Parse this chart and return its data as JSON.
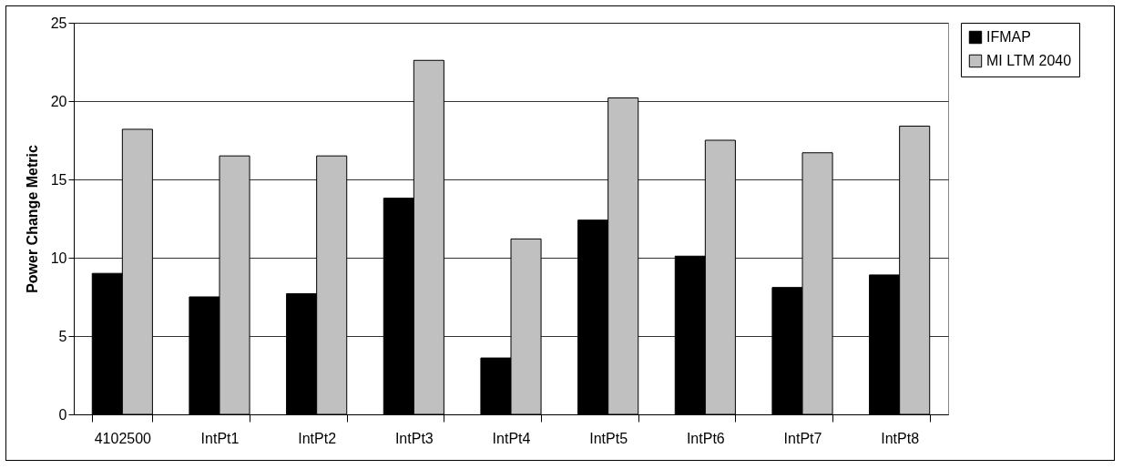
{
  "chart_data": {
    "type": "bar",
    "ylabel": "Power Change Metric",
    "categories": [
      "4102500",
      "IntPt1",
      "IntPt2",
      "IntPt3",
      "IntPt4",
      "IntPt5",
      "IntPt6",
      "IntPt7",
      "IntPt8"
    ],
    "series": [
      {
        "name": "IFMAP",
        "color": "#000000",
        "values": [
          9.0,
          7.5,
          7.7,
          13.8,
          3.6,
          12.4,
          10.1,
          8.1,
          8.9
        ]
      },
      {
        "name": "MI LTM 2040",
        "color": "#c0c0c0",
        "values": [
          18.2,
          16.5,
          16.5,
          22.6,
          11.2,
          20.2,
          17.5,
          16.7,
          18.4
        ]
      }
    ],
    "ylim": [
      0,
      25
    ],
    "yticks": [
      0,
      5,
      10,
      15,
      20,
      25
    ],
    "grid": "y",
    "legend": "right"
  }
}
